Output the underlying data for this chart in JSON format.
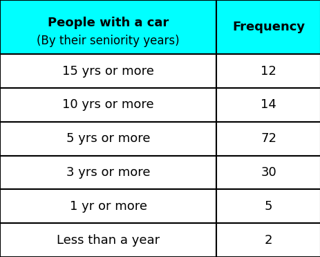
{
  "col1_header_line1": "People with a car",
  "col1_header_line2": "(By their seniority years)",
  "col2_header": "Frequency",
  "rows": [
    [
      "15 yrs or more",
      "12"
    ],
    [
      "10 yrs or more",
      "14"
    ],
    [
      "5 yrs or more",
      "72"
    ],
    [
      "3 yrs or more",
      "30"
    ],
    [
      "1 yr or more",
      "5"
    ],
    [
      "Less than a year",
      "2"
    ]
  ],
  "header_bg": "#00FFFF",
  "header_text_color": "#000000",
  "cell_bg": "#FFFFFF",
  "cell_text_color": "#000000",
  "border_color": "#000000",
  "header_fontsize": 13,
  "cell_fontsize": 13,
  "fig_width": 4.64,
  "fig_height": 3.71,
  "col_split": 0.675
}
